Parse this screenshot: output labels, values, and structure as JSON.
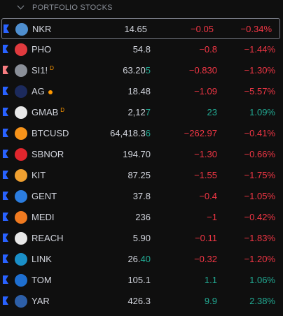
{
  "header": {
    "title": "PORTFOLIO STOCKS"
  },
  "tick_color": "#22ab94",
  "up_color": "#22ab94",
  "down_color": "#f23645",
  "rows": [
    {
      "symbol": "NKR",
      "price": "14.65",
      "change": "−0.05",
      "change_pct": "−0.34%",
      "flag_color": "#2962ff",
      "icon_color": "#4f8fcf",
      "selected": true
    },
    {
      "symbol": "PHO",
      "price": "54.8",
      "change": "−0.8",
      "change_pct": "−1.44%",
      "flag_color": "#2962ff",
      "icon_color": "#e03a3e"
    },
    {
      "symbol": "SI1!",
      "badge": "D",
      "price": "63.20",
      "price_tail": "5",
      "change": "−0.830",
      "change_pct": "−1.30%",
      "flag_color": "#f77c80",
      "icon_color": "#8a8f98"
    },
    {
      "symbol": "AG",
      "status_dot": "#ff9800",
      "price": "18.48",
      "change": "−1.09",
      "change_pct": "−5.57%",
      "flag_color": "#2962ff",
      "icon_color": "#1c2a5c"
    },
    {
      "symbol": "GMAB",
      "badge": "D",
      "price": "2,12",
      "price_tail": "7",
      "change": "23",
      "change_pct": "1.09%",
      "flag_color": "#2962ff",
      "icon_color": "#e8e8e8"
    },
    {
      "symbol": "BTCUSD",
      "price": "64,418.3",
      "price_tail": "6",
      "change": "−262.97",
      "change_pct": "−0.41%",
      "flag_color": "#2962ff",
      "icon_color": "#f7931a"
    },
    {
      "symbol": "SBNOR",
      "price": "194.70",
      "change": "−1.30",
      "change_pct": "−0.66%",
      "flag_color": "#2962ff",
      "icon_color": "#e0262d"
    },
    {
      "symbol": "KIT",
      "price": "87.25",
      "change": "−1.55",
      "change_pct": "−1.75%",
      "flag_color": "#2962ff",
      "icon_color": "#f0a030"
    },
    {
      "symbol": "GENT",
      "price": "37.8",
      "change": "−0.4",
      "change_pct": "−1.05%",
      "flag_color": "#2962ff",
      "icon_color": "#2b7de0"
    },
    {
      "symbol": "MEDI",
      "price": "236",
      "change": "−1",
      "change_pct": "−0.42%",
      "flag_color": "#2962ff",
      "icon_color": "#f07a20"
    },
    {
      "symbol": "REACH",
      "price": "5.90",
      "change": "−0.11",
      "change_pct": "−1.83%",
      "flag_color": "#2962ff",
      "icon_color": "#e8e8e8"
    },
    {
      "symbol": "LINK",
      "price": "26.",
      "price_tail": "40",
      "change": "−0.32",
      "change_pct": "−1.20%",
      "flag_color": "#2962ff",
      "icon_color": "#1a8fc8"
    },
    {
      "symbol": "TOM",
      "price": "105.1",
      "change": "1.1",
      "change_pct": "1.06%",
      "flag_color": "#2962ff",
      "icon_color": "#1e6fd0"
    },
    {
      "symbol": "YAR",
      "price": "426.3",
      "change": "9.9",
      "change_pct": "2.38%",
      "flag_color": "#2962ff",
      "icon_color": "#2d5fa8"
    }
  ]
}
